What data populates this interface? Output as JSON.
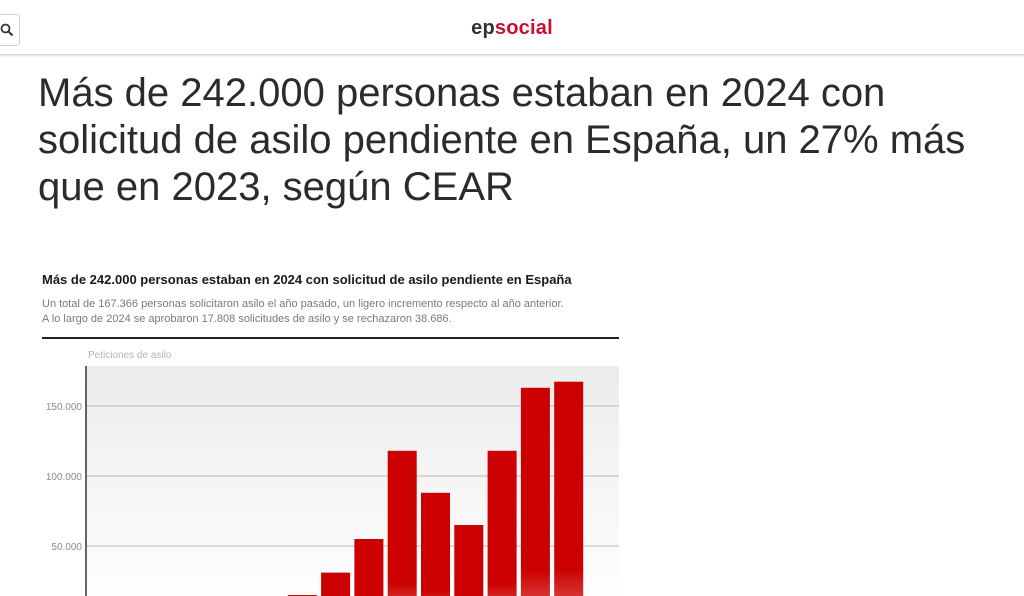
{
  "header": {
    "logo_ep": "ep",
    "logo_social": "social",
    "search_icon": "search-icon"
  },
  "article": {
    "headline": "Más de 242.000 personas estaban en 2024 con solicitud de asilo pendiente en España, un 27% más que en 2023, según CEAR"
  },
  "colors": {
    "brand": "#c8102e",
    "bar": "#cc0000",
    "plot_bg": "#ececec"
  },
  "chart_data": {
    "type": "bar",
    "title": "Más de 242.000 personas estaban en 2024 con solicitud de asilo pendiente en España",
    "subtitle_lines": [
      "Un total de 167.366 personas solicitaron asilo el año pasado, un ligero incremento respecto al año anterior.",
      "A lo largo de 2024 se aprobaron 17.808 solicitudes de asilo y se rechazaron 38.686."
    ],
    "ylabel": "Peticiones de asilo",
    "yticks": [
      {
        "value": 50000,
        "label": "50.000"
      },
      {
        "value": 100000,
        "label": "100.000"
      },
      {
        "value": 150000,
        "label": "150.000"
      }
    ],
    "ylim": [
      0,
      180000
    ],
    "grid": true,
    "values": [
      2000,
      3000,
      4000,
      5000,
      6000,
      14000,
      15000,
      31000,
      55000,
      118000,
      88000,
      65000,
      118000,
      163000,
      167366
    ]
  }
}
